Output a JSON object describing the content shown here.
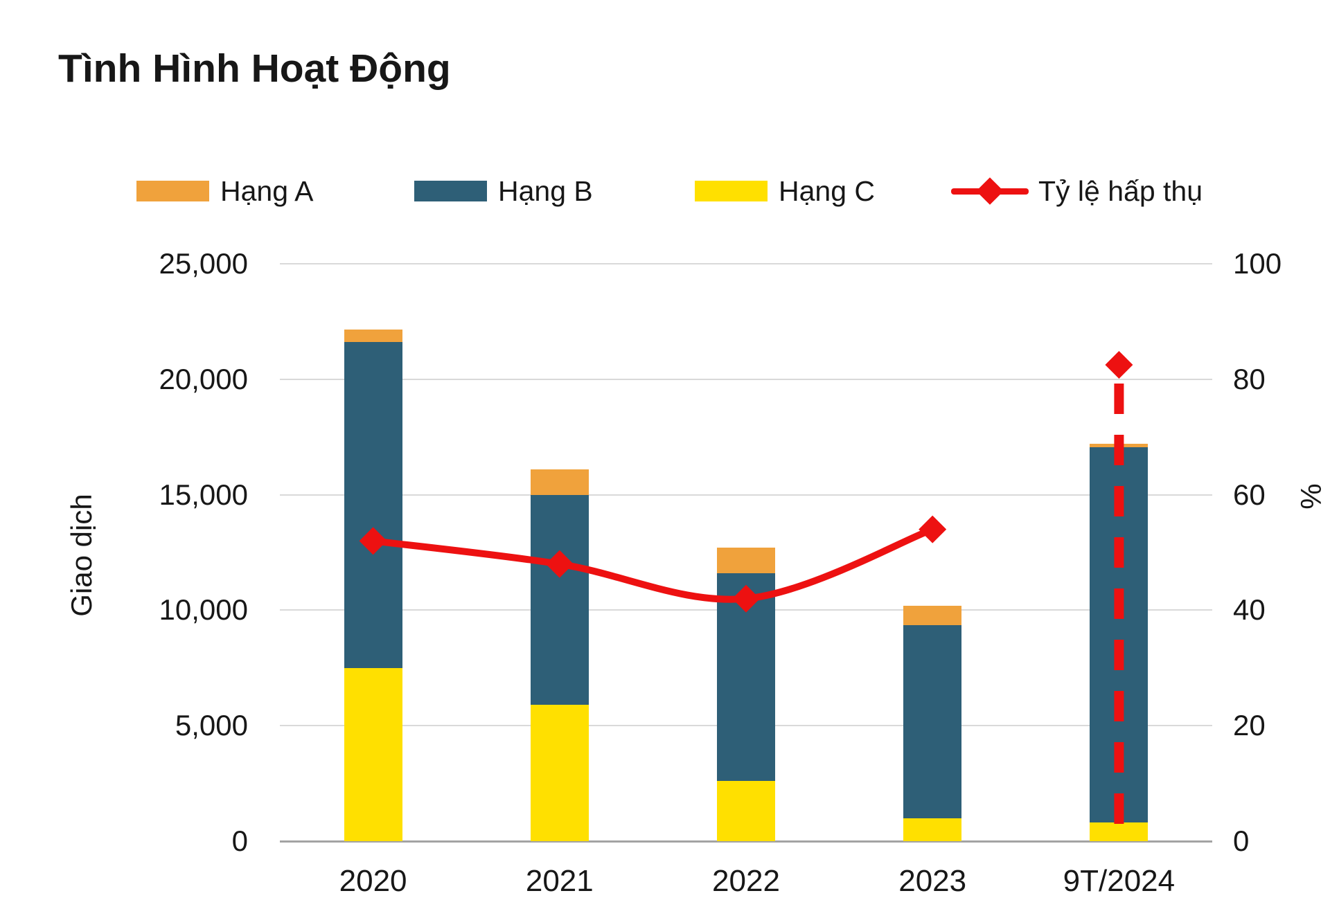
{
  "title": "Tình Hình Hoạt Động",
  "legend": [
    {
      "label": "Hạng A",
      "marker": "swatch",
      "color": "#F0A23C"
    },
    {
      "label": "Hạng B",
      "marker": "swatch",
      "color": "#2E5F77"
    },
    {
      "label": "Hạng C",
      "marker": "swatch",
      "color": "#FFE000"
    },
    {
      "label": "Tỷ lệ hấp thụ",
      "marker": "line-diamond",
      "color": "#ED1111"
    }
  ],
  "chart_data": {
    "type": "combo-stacked-bar-line",
    "categories": [
      "2020",
      "2021",
      "2022",
      "2023",
      "9T/2024"
    ],
    "series": [
      {
        "name": "Hạng C",
        "type": "bar",
        "stack_order": 1,
        "color": "#FFE000",
        "values": [
          7500,
          5900,
          2600,
          1000,
          800
        ]
      },
      {
        "name": "Hạng B",
        "type": "bar",
        "stack_order": 2,
        "color": "#2E5F77",
        "values": [
          14100,
          9100,
          9000,
          8350,
          16250
        ]
      },
      {
        "name": "Hạng A",
        "type": "bar",
        "stack_order": 3,
        "color": "#F0A23C",
        "values": [
          550,
          1100,
          1100,
          850,
          150
        ]
      },
      {
        "name": "Tỷ lệ hấp thụ",
        "type": "line",
        "axis": "right",
        "color": "#ED1111",
        "values": [
          52,
          48,
          42,
          54,
          82.5
        ]
      }
    ],
    "bar_totals": [
      22150,
      16100,
      12700,
      10200,
      17200
    ],
    "left_axis": {
      "title": "Giao dịch",
      "min": 0,
      "max": 25000,
      "tick_labels": [
        "25,000",
        "20,000",
        "15,000",
        "10,000",
        "5,000",
        "0"
      ]
    },
    "right_axis": {
      "title": "%",
      "min": 0,
      "max": 100,
      "tick_labels": [
        "100",
        "80",
        "60",
        "40",
        "20",
        "0"
      ]
    },
    "annotations": {
      "line_solid_through_categories": [
        "2020",
        "2021",
        "2022",
        "2023"
      ],
      "isolated_point_category": "9T/2024",
      "isolated_point_style": "diamond with vertical dashed red drop line to axis"
    },
    "grid": "horizontal-only",
    "legend_position": "top"
  }
}
